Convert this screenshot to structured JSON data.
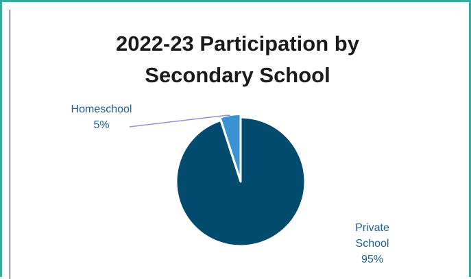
{
  "chart_data": {
    "type": "pie",
    "title": "2022-23 Participation by Secondary School",
    "title_lines": [
      "2022-23 Participation by",
      "Secondary School"
    ],
    "slices": [
      {
        "label": "Private School",
        "label_lines": [
          "Private",
          "School"
        ],
        "value": 95,
        "value_label": "95%",
        "color": "#004b6e",
        "label_color": "#1f5f8b"
      },
      {
        "label": "Homeschool",
        "label_lines": [
          "Homeschool"
        ],
        "value": 5,
        "value_label": "5%",
        "color": "#3a93d0",
        "label_color": "#1f5f8b"
      }
    ],
    "leader_line_color": "#9b8fd6",
    "border_color": "#3aa99f"
  }
}
